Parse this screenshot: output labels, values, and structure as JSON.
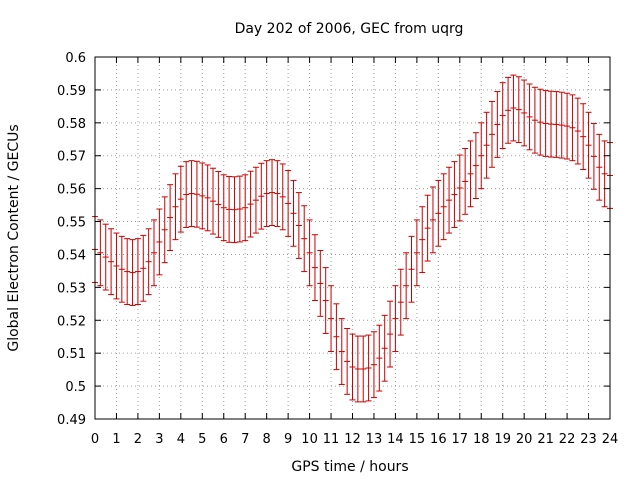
{
  "chart_data": {
    "type": "line",
    "title": "Day 202 of 2006, GEC from uqrg",
    "xlabel": "GPS time / hours",
    "ylabel": "Global Electron Content / GECUs",
    "xlim": [
      0,
      24
    ],
    "ylim": [
      0.49,
      0.6
    ],
    "xticks": [
      "0",
      "1",
      "2",
      "3",
      "4",
      "5",
      "6",
      "7",
      "8",
      "9",
      "10",
      "11",
      "12",
      "13",
      "14",
      "15",
      "16",
      "17",
      "18",
      "19",
      "20",
      "21",
      "22",
      "23",
      "24"
    ],
    "yticks": [
      "0.49",
      "0.5",
      "0.51",
      "0.52",
      "0.53",
      "0.54",
      "0.55",
      "0.56",
      "0.57",
      "0.58",
      "0.59",
      "0.6"
    ],
    "grid": true,
    "legend": "none",
    "error_bar": 0.01,
    "series": [
      {
        "color": "#cc0000",
        "x": [
          0.0,
          0.25,
          0.5,
          0.75,
          1.0,
          1.25,
          1.5,
          1.75,
          2.0,
          2.25,
          2.5,
          2.75,
          3.0,
          3.25,
          3.5,
          3.75,
          4.0,
          4.25,
          4.5,
          4.75,
          5.0,
          5.25,
          5.5,
          5.75,
          6.0,
          6.25,
          6.5,
          6.75,
          7.0,
          7.25,
          7.5,
          7.75,
          8.0,
          8.25,
          8.5,
          8.75,
          9.0,
          9.25,
          9.5,
          9.75,
          10.0,
          10.25,
          10.5,
          10.75,
          11.0,
          11.25,
          11.5,
          11.75,
          12.0,
          12.25,
          12.5,
          12.75,
          13.0,
          13.25,
          13.5,
          13.75,
          14.0,
          14.25,
          14.5,
          14.75,
          15.0,
          15.25,
          15.5,
          15.75,
          16.0,
          16.25,
          16.5,
          16.75,
          17.0,
          17.25,
          17.5,
          17.75,
          18.0,
          18.25,
          18.5,
          18.75,
          19.0,
          19.25,
          19.5,
          19.75,
          20.0,
          20.25,
          20.5,
          20.75,
          21.0,
          21.25,
          21.5,
          21.75,
          22.0,
          22.25,
          22.5,
          22.75,
          23.0,
          23.25,
          23.5,
          23.75,
          24.0
        ],
        "y": [
          0.5415,
          0.5405,
          0.5392,
          0.5378,
          0.5365,
          0.5355,
          0.5348,
          0.5345,
          0.5348,
          0.5358,
          0.5378,
          0.5405,
          0.5438,
          0.5475,
          0.5512,
          0.5545,
          0.5568,
          0.5582,
          0.5585,
          0.5583,
          0.5578,
          0.5572,
          0.5562,
          0.5552,
          0.5542,
          0.5537,
          0.5536,
          0.5538,
          0.5542,
          0.5553,
          0.5565,
          0.5577,
          0.5585,
          0.5588,
          0.5585,
          0.5575,
          0.5555,
          0.5525,
          0.5488,
          0.5448,
          0.5405,
          0.536,
          0.5312,
          0.526,
          0.5205,
          0.515,
          0.5105,
          0.5075,
          0.5058,
          0.5052,
          0.5052,
          0.5055,
          0.5065,
          0.5085,
          0.5115,
          0.5158,
          0.5205,
          0.5255,
          0.5305,
          0.5355,
          0.5405,
          0.5445,
          0.548,
          0.5505,
          0.5525,
          0.5545,
          0.5565,
          0.5582,
          0.5602,
          0.5622,
          0.5645,
          0.567,
          0.57,
          0.5732,
          0.5765,
          0.5795,
          0.5822,
          0.5838,
          0.5845,
          0.584,
          0.583,
          0.5818,
          0.5808,
          0.5802,
          0.5798,
          0.5796,
          0.5795,
          0.5793,
          0.579,
          0.5785,
          0.5775,
          0.5758,
          0.5732,
          0.5698,
          0.5665,
          0.5645,
          0.564
        ]
      }
    ]
  }
}
